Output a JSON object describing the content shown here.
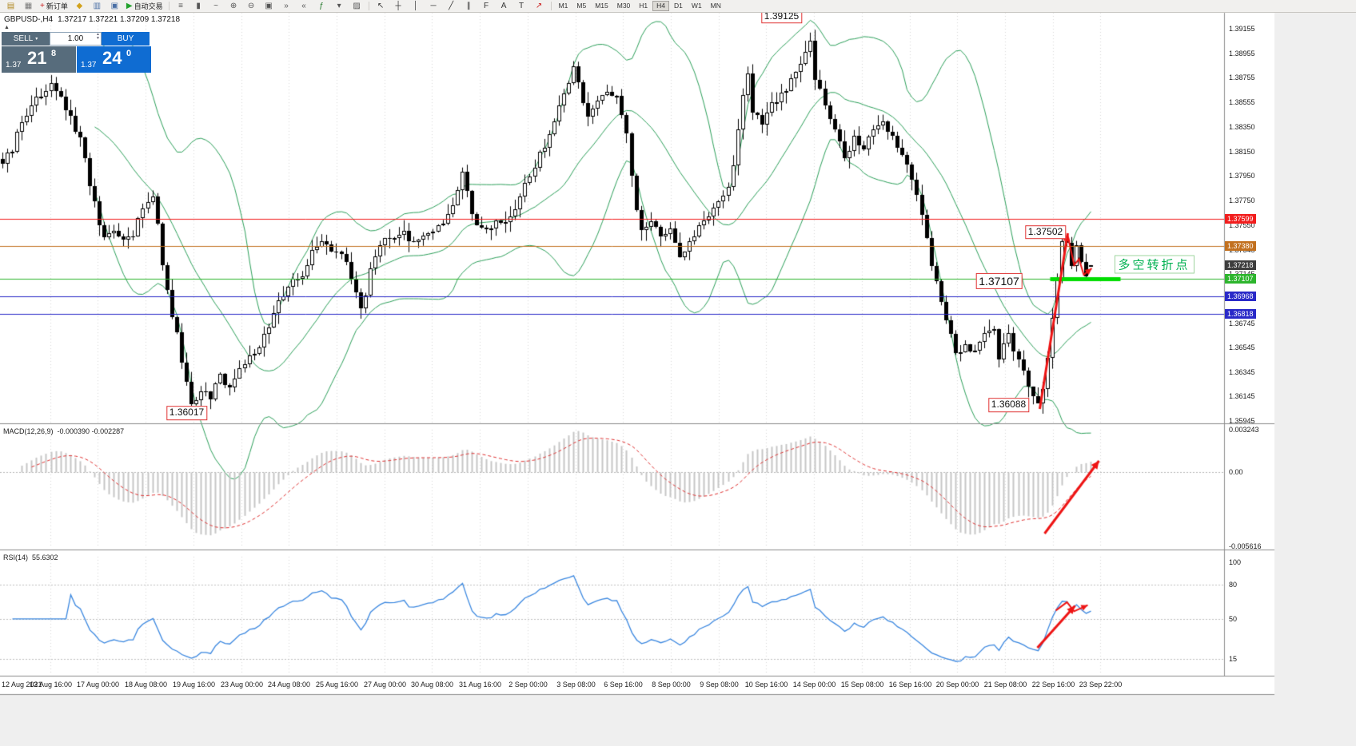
{
  "header": {
    "symbol_period": "GBPUSD-,H4",
    "ohlc": "1.37217 1.37221 1.37209 1.37218"
  },
  "toolbar": {
    "groups": [
      {
        "buttons": [
          {
            "name": "new-chart-icon",
            "glyph": "▤",
            "color": "#b08820"
          },
          {
            "name": "profiles-icon",
            "glyph": "▦",
            "color": "#777777"
          },
          {
            "name": "new-order-button",
            "glyph": "+",
            "color": "#cc2222",
            "label": "新订单"
          },
          {
            "name": "metaeditor-icon",
            "glyph": "◆",
            "color": "#d2a21c"
          },
          {
            "name": "market-watch-icon",
            "glyph": "▥",
            "color": "#4a6fa5"
          },
          {
            "name": "navigator-icon",
            "glyph": "▣",
            "color": "#4a6fa5"
          },
          {
            "name": "autotrading-button",
            "glyph": "▶",
            "color": "#22a12c",
            "label": "自动交易"
          }
        ]
      },
      {
        "buttons": [
          {
            "name": "bars-icon",
            "glyph": "≡",
            "color": "#555555"
          },
          {
            "name": "candles-icon",
            "glyph": "▮",
            "color": "#555555"
          },
          {
            "name": "line-chart-icon",
            "glyph": "~",
            "color": "#555555"
          },
          {
            "name": "zoom-in-icon",
            "glyph": "⊕",
            "color": "#555555"
          },
          {
            "name": "zoom-out-icon",
            "glyph": "⊖",
            "color": "#555555"
          },
          {
            "name": "tile-windows-icon",
            "glyph": "▣",
            "color": "#555555"
          },
          {
            "name": "auto-scroll-icon",
            "glyph": "»",
            "color": "#555555"
          },
          {
            "name": "chart-shift-icon",
            "glyph": "«",
            "color": "#555555"
          },
          {
            "name": "indicators-icon",
            "glyph": "ƒ",
            "color": "#22772a"
          },
          {
            "name": "periods-icon",
            "glyph": "▾",
            "color": "#555555"
          },
          {
            "name": "templates-icon",
            "glyph": "▨",
            "color": "#555555"
          }
        ]
      },
      {
        "buttons": [
          {
            "name": "cursor-icon",
            "glyph": "↖",
            "color": "#333333"
          },
          {
            "name": "crosshair-icon",
            "glyph": "┼",
            "color": "#333333"
          },
          {
            "name": "vertical-line-icon",
            "glyph": "│",
            "color": "#333333"
          },
          {
            "name": "horizontal-line-icon",
            "glyph": "─",
            "color": "#333333"
          },
          {
            "name": "trendline-icon",
            "glyph": "╱",
            "color": "#333333"
          },
          {
            "name": "channel-icon",
            "glyph": "∥",
            "color": "#333333"
          },
          {
            "name": "fibonacci-icon",
            "glyph": "F",
            "color": "#333333"
          },
          {
            "name": "text-icon",
            "glyph": "A",
            "color": "#333333"
          },
          {
            "name": "label-icon",
            "glyph": "T",
            "color": "#333333"
          },
          {
            "name": "arrows-icon",
            "glyph": "↗",
            "color": "#cc2222"
          }
        ]
      }
    ],
    "timeframes": [
      "M1",
      "M5",
      "M15",
      "M30",
      "H1",
      "H4",
      "D1",
      "W1",
      "MN"
    ],
    "active_timeframe": "H4"
  },
  "trade_panel": {
    "sell_label": "SELL",
    "buy_label": "BUY",
    "volume": "1.00",
    "sell_price_small": "1.37",
    "sell_price_big": "21",
    "sell_price_sup": "8",
    "buy_price_small": "1.37",
    "buy_price_big": "24",
    "buy_price_sup": "0"
  },
  "chart_data": {
    "type": "candlestick",
    "symbol": "GBPUSD-",
    "timeframe": "H4",
    "current_ohlc": {
      "open": 1.37217,
      "high": 1.37221,
      "low": 1.37209,
      "close": 1.37218
    },
    "ylim": [
      1.35925,
      1.39287
    ],
    "num_candles": 226,
    "gen": {
      "seed": 987654321,
      "body_noise": 0.0007,
      "wick_noise": 0.0009
    },
    "anchors": [
      [
        0,
        1.3808
      ],
      [
        2,
        1.3818
      ],
      [
        4,
        1.3838
      ],
      [
        6,
        1.3854
      ],
      [
        8,
        1.3862
      ],
      [
        10,
        1.3868
      ],
      [
        12,
        1.386
      ],
      [
        14,
        1.3842
      ],
      [
        16,
        1.3825
      ],
      [
        18,
        1.3788
      ],
      [
        20,
        1.3755
      ],
      [
        21,
        1.3745
      ],
      [
        23,
        1.3752
      ],
      [
        25,
        1.3742
      ],
      [
        27,
        1.3748
      ],
      [
        29,
        1.3768
      ],
      [
        31,
        1.3778
      ],
      [
        32,
        1.3755
      ],
      [
        33,
        1.3722
      ],
      [
        35,
        1.3682
      ],
      [
        37,
        1.3645
      ],
      [
        39,
        1.361
      ],
      [
        41,
        1.362
      ],
      [
        43,
        1.3614
      ],
      [
        45,
        1.363
      ],
      [
        47,
        1.3622
      ],
      [
        49,
        1.364
      ],
      [
        52,
        1.3648
      ],
      [
        55,
        1.3674
      ],
      [
        58,
        1.3698
      ],
      [
        60,
        1.3708
      ],
      [
        62,
        1.3714
      ],
      [
        64,
        1.3732
      ],
      [
        66,
        1.3744
      ],
      [
        68,
        1.3736
      ],
      [
        70,
        1.373
      ],
      [
        72,
        1.3712
      ],
      [
        74,
        1.3684
      ],
      [
        76,
        1.3716
      ],
      [
        78,
        1.374
      ],
      [
        80,
        1.3746
      ],
      [
        82,
        1.375
      ],
      [
        84,
        1.3744
      ],
      [
        86,
        1.374
      ],
      [
        88,
        1.3748
      ],
      [
        90,
        1.3756
      ],
      [
        92,
        1.3762
      ],
      [
        93,
        1.377
      ],
      [
        95,
        1.3802
      ],
      [
        96,
        1.378
      ],
      [
        98,
        1.3752
      ],
      [
        100,
        1.3748
      ],
      [
        102,
        1.3756
      ],
      [
        104,
        1.376
      ],
      [
        106,
        1.3768
      ],
      [
        108,
        1.3788
      ],
      [
        110,
        1.3805
      ],
      [
        112,
        1.3818
      ],
      [
        114,
        1.384
      ],
      [
        116,
        1.3862
      ],
      [
        118,
        1.3886
      ],
      [
        119,
        1.3868
      ],
      [
        121,
        1.3842
      ],
      [
        123,
        1.3856
      ],
      [
        125,
        1.3866
      ],
      [
        127,
        1.3858
      ],
      [
        129,
        1.3828
      ],
      [
        130,
        1.3792
      ],
      [
        131,
        1.3766
      ],
      [
        132,
        1.3748
      ],
      [
        134,
        1.3756
      ],
      [
        136,
        1.3744
      ],
      [
        138,
        1.375
      ],
      [
        140,
        1.373
      ],
      [
        142,
        1.3742
      ],
      [
        144,
        1.3752
      ],
      [
        146,
        1.376
      ],
      [
        148,
        1.3774
      ],
      [
        150,
        1.3788
      ],
      [
        151,
        1.3802
      ],
      [
        153,
        1.3858
      ],
      [
        154,
        1.388
      ],
      [
        155,
        1.3846
      ],
      [
        157,
        1.3838
      ],
      [
        159,
        1.3852
      ],
      [
        161,
        1.386
      ],
      [
        163,
        1.3872
      ],
      [
        165,
        1.3886
      ],
      [
        167,
        1.3905
      ],
      [
        168,
        1.3874
      ],
      [
        170,
        1.3856
      ],
      [
        172,
        1.383
      ],
      [
        174,
        1.3812
      ],
      [
        176,
        1.3826
      ],
      [
        178,
        1.3818
      ],
      [
        180,
        1.3832
      ],
      [
        182,
        1.3842
      ],
      [
        184,
        1.3826
      ],
      [
        186,
        1.3812
      ],
      [
        188,
        1.3795
      ],
      [
        190,
        1.3762
      ],
      [
        192,
        1.3722
      ],
      [
        194,
        1.369
      ],
      [
        196,
        1.3664
      ],
      [
        197,
        1.3648
      ],
      [
        199,
        1.3658
      ],
      [
        201,
        1.365
      ],
      [
        203,
        1.3664
      ],
      [
        205,
        1.3668
      ],
      [
        206,
        1.3648
      ],
      [
        208,
        1.3666
      ],
      [
        210,
        1.3644
      ],
      [
        212,
        1.3622
      ],
      [
        214,
        1.361
      ],
      [
        215,
        1.362
      ],
      [
        216,
        1.3648
      ],
      [
        217,
        1.368
      ],
      [
        218,
        1.3712
      ],
      [
        219,
        1.374
      ],
      [
        220,
        1.3738
      ],
      [
        221,
        1.3724
      ],
      [
        222,
        1.3736
      ],
      [
        223,
        1.3722
      ],
      [
        224,
        1.3716
      ],
      [
        225,
        1.3722
      ]
    ],
    "pins": [
      {
        "i": 39,
        "low": 1.36017
      },
      {
        "i": 167,
        "high": 1.39125
      },
      {
        "i": 214,
        "low": 1.36088
      },
      {
        "i": 219,
        "high": 1.37502
      },
      {
        "i": 225,
        "o": 1.37217,
        "h": 1.37221,
        "l": 1.37209,
        "c": 1.37218
      }
    ],
    "bollinger": {
      "period": 20,
      "deviation": 2.0,
      "color": "#2ca05a"
    },
    "candle_colors": {
      "bull": "#ffffff",
      "bear": "#000000",
      "outline": "#000000"
    },
    "h_lines": [
      {
        "price": 1.37599,
        "color": "#f21d1d",
        "label": "1.37599"
      },
      {
        "price": 1.3738,
        "color": "#c2701e",
        "label": "1.37380"
      },
      {
        "price": 1.37107,
        "color": "#2db52d",
        "label": "1.37107"
      },
      {
        "price": 1.36968,
        "color": "#2929c8",
        "label": "1.36968"
      },
      {
        "price": 1.36818,
        "color": "#2929c8",
        "label": "1.36818"
      }
    ],
    "bid_tag": {
      "price": 1.37218,
      "label": "1.37218",
      "bg": "#3d3d3d"
    },
    "thick_line": {
      "price": 1.37107,
      "i0": 216.5,
      "i1": 231,
      "color": "#00dd00",
      "width": 5
    },
    "price_ticks": [
      "1.39155",
      "1.38955",
      "1.38755",
      "1.38555",
      "1.38350",
      "1.38150",
      "1.37950",
      "1.37750",
      "1.37550",
      "1.37345",
      "1.37145",
      "1.36945",
      "1.36745",
      "1.36545",
      "1.36345",
      "1.36145",
      "1.35945"
    ],
    "time_labels": [
      "12 Aug 2021",
      "13 Aug 16:00",
      "17 Aug 00:00",
      "18 Aug 08:00",
      "19 Aug 16:00",
      "23 Aug 00:00",
      "24 Aug 08:00",
      "25 Aug 16:00",
      "27 Aug 00:00",
      "30 Aug 08:00",
      "31 Aug 16:00",
      "2 Sep 00:00",
      "3 Sep 08:00",
      "6 Sep 16:00",
      "8 Sep 00:00",
      "9 Sep 08:00",
      "10 Sep 16:00",
      "14 Sep 00:00",
      "15 Sep 08:00",
      "16 Sep 16:00",
      "20 Sep 00:00",
      "21 Sep 08:00",
      "22 Sep 16:00",
      "23 Sep 22:00"
    ],
    "annotations": [
      {
        "name": "price-label-139125",
        "text": "1.39125",
        "i": 161,
        "price": 1.39255,
        "size": 12
      },
      {
        "name": "price-label-137502",
        "text": "1.37502",
        "i": 215.5,
        "price": 1.3749,
        "size": 12
      },
      {
        "name": "price-label-137107",
        "text": "1.37107",
        "i": 206,
        "price": 1.3709,
        "size": 14
      },
      {
        "name": "price-label-136088",
        "text": "1.36088",
        "i": 208,
        "price": 1.36075,
        "size": 12
      },
      {
        "name": "price-label-136017",
        "text": "1.36017",
        "i": 38,
        "price": 1.3601,
        "size": 12
      }
    ],
    "note": {
      "text": "多空转折点",
      "i": 238,
      "price": 1.37225,
      "color": "#00b050"
    },
    "arrow_color": "#ee1414",
    "arrows": [
      {
        "panel": "main",
        "width": 3,
        "points": [
          [
            214.4,
            1.36043
          ],
          [
            220.2,
            1.37482
          ]
        ]
      },
      {
        "panel": "main",
        "width": 2,
        "points": [
          [
            220.3,
            1.37429
          ],
          [
            221.5,
            1.3722
          ],
          [
            222.5,
            1.37272
          ],
          [
            223.5,
            1.37141
          ],
          [
            225.1,
            1.37194
          ]
        ]
      },
      {
        "panel": "macd",
        "width": 3,
        "points": [
          [
            215.4,
            -0.004645
          ],
          [
            226.6,
            0.000877
          ]
        ]
      },
      {
        "panel": "rsi",
        "width": 3,
        "points": [
          [
            213.9,
            24.5
          ],
          [
            221.7,
            61.6
          ]
        ]
      },
      {
        "panel": "rsi",
        "width": 2,
        "points": [
          [
            217.7,
            57.5
          ],
          [
            220.0,
            64.9
          ],
          [
            221.5,
            56.8
          ],
          [
            224.3,
            62.2
          ]
        ]
      }
    ],
    "macd": {
      "title": "MACD(12,26,9)",
      "values_text": "-0.000390 -0.002287",
      "fast": 12,
      "slow": 26,
      "signal": 9,
      "ymax": 0.003243,
      "ymin": -0.005616,
      "axis_labels": [
        "0.003243",
        "0.00",
        "-0.005616"
      ],
      "hist_color": "#c6c6c6",
      "signal_color": "#e03030"
    },
    "rsi": {
      "title": "RSI(14)",
      "value_text": "55.6302",
      "period": 14,
      "ymax": 105,
      "ymin": 2,
      "axis": [
        {
          "v": 100,
          "label": "100"
        },
        {
          "v": 80,
          "label": "80"
        },
        {
          "v": 50,
          "label": "50"
        },
        {
          "v": 15,
          "label": "15"
        }
      ],
      "levels": [
        80,
        50,
        15
      ],
      "line_color": "#3a87e0"
    }
  }
}
